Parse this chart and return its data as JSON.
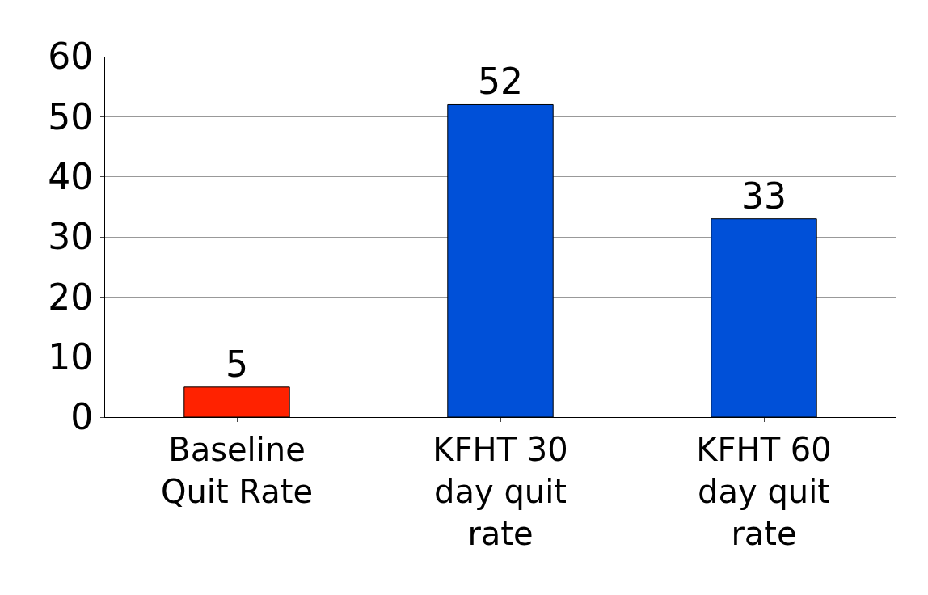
{
  "chart_data": {
    "type": "bar",
    "categories": [
      "Baseline Quit Rate",
      "KFHT 30 day quit rate",
      "KFHT 60 day quit rate"
    ],
    "values": [
      5,
      52,
      33
    ],
    "colors": [
      "#ff2200",
      "#0050d8",
      "#0050d8"
    ],
    "ylim": [
      0,
      60
    ],
    "yticks": [
      0,
      10,
      20,
      30,
      40,
      50,
      60
    ],
    "grid": "y",
    "data_labels": true
  }
}
